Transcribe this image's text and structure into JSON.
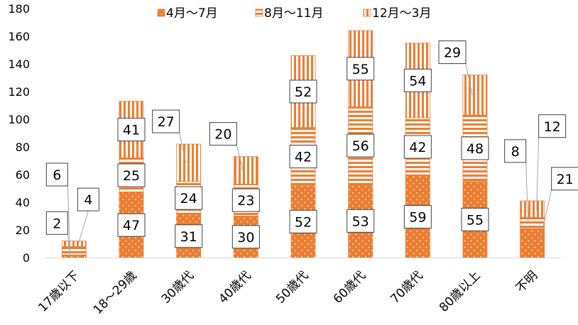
{
  "chart_data": {
    "type": "bar",
    "stacked": true,
    "categories": [
      "17歳以下",
      "18～29歳",
      "30歳代",
      "40歳代",
      "50歳代",
      "60歳代",
      "70歳代",
      "80歳以上",
      "不明"
    ],
    "series": [
      {
        "name": "4月～7月",
        "values": [
          2,
          47,
          31,
          30,
          52,
          53,
          59,
          55,
          21
        ],
        "color": "#ED7D31",
        "pattern": "dots"
      },
      {
        "name": "8月～11月",
        "values": [
          6,
          25,
          24,
          23,
          42,
          56,
          42,
          48,
          8
        ],
        "color": "#ED7D31",
        "pattern": "horizontal-stripes"
      },
      {
        "name": "12月～3月",
        "values": [
          4,
          41,
          27,
          20,
          52,
          55,
          54,
          29,
          12
        ],
        "color": "#ED7D31",
        "pattern": "vertical-stripes"
      }
    ],
    "ylim": [
      0,
      180
    ],
    "yticks": [
      0,
      20,
      40,
      60,
      80,
      100,
      120,
      140,
      160,
      180
    ],
    "legend_position": "top",
    "grid": false,
    "data_labels": "callout-boxes"
  }
}
